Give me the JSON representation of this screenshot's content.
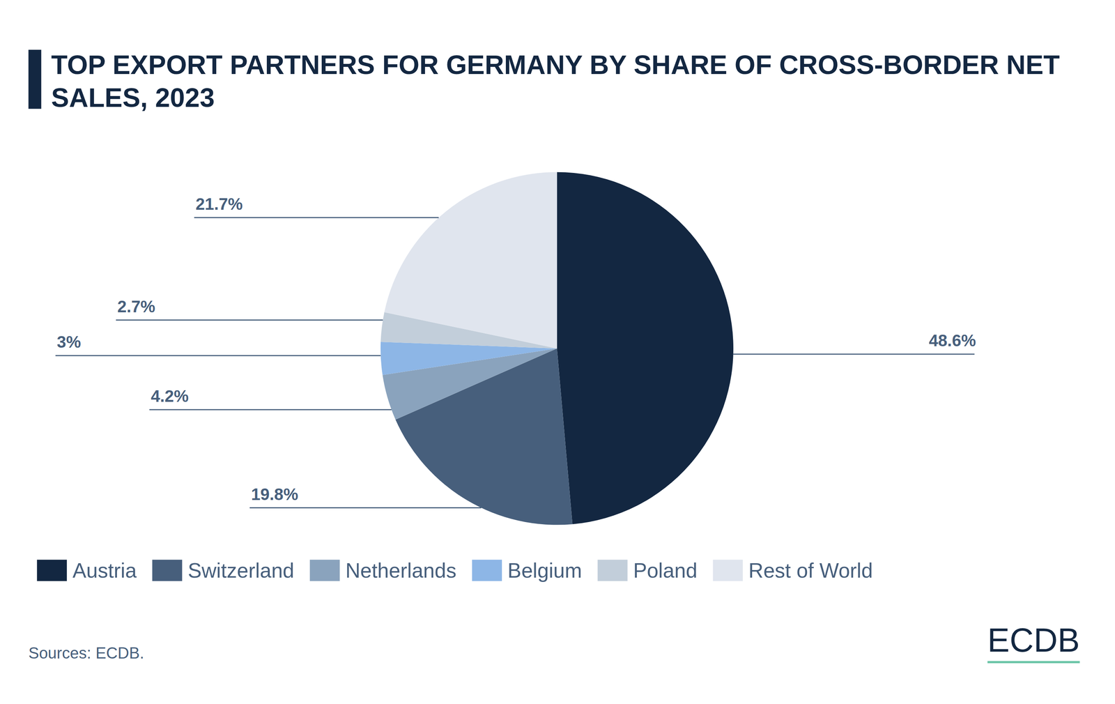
{
  "chart_data": {
    "type": "pie",
    "title": "TOP EXPORT PARTNERS FOR GERMANY BY SHARE OF CROSS-BORDER NET SALES, 2023",
    "categories": [
      "Austria",
      "Switzerland",
      "Netherlands",
      "Belgium",
      "Poland",
      "Rest of World"
    ],
    "values": [
      48.6,
      19.8,
      4.2,
      3,
      2.7,
      21.7
    ],
    "value_labels": [
      "48.6%",
      "19.8%",
      "4.2%",
      "3%",
      "2.7%",
      "21.7%"
    ],
    "colors": [
      "#132741",
      "#475f7c",
      "#8aa3bd",
      "#8db6e6",
      "#c2ceda",
      "#e0e5ee"
    ],
    "data_labels": true,
    "legend": "bottom"
  },
  "source": "Sources: ECDB.",
  "logo": "ECDB"
}
